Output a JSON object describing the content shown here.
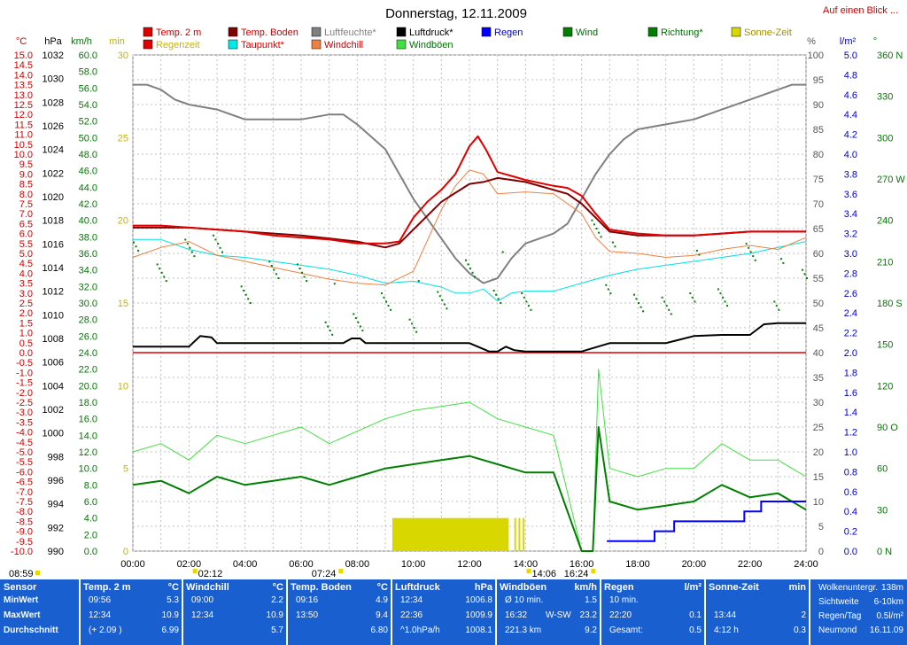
{
  "header": {
    "title": "Donnerstag, 12.11.2009",
    "quick_link": "Auf einen Blick ..."
  },
  "axes": {
    "temp": {
      "unit": "°C",
      "min": -10,
      "max": 15,
      "step": 0.5,
      "color": "#d00000"
    },
    "pressure": {
      "unit": "hPa",
      "min": 990,
      "max": 1032,
      "step": 2,
      "color": "#000000"
    },
    "wind_kmh": {
      "unit": "km/h",
      "min": 0,
      "max": 60,
      "step": 2,
      "color": "#007a00"
    },
    "minutes": {
      "unit": "min",
      "min": 0,
      "max": 30,
      "ticks": [
        0,
        5,
        10,
        15,
        20,
        25,
        30
      ],
      "color": "#c8b400"
    },
    "humidity": {
      "unit": "%",
      "min": 0,
      "max": 100,
      "step": 5,
      "color": "#555555"
    },
    "rain": {
      "unit": "l/m²",
      "min": 0,
      "max": 5,
      "step": 0.2,
      "color": "#0000cc"
    },
    "direction": {
      "unit": "°",
      "min": 0,
      "max": 360,
      "step": 30,
      "color": "#007a00",
      "labels": {
        "90": "90 O",
        "180": "180 S",
        "270": "270 W",
        "360": "360 N",
        "0": "0 N"
      }
    },
    "time": {
      "labels": [
        "00:00",
        "02:00",
        "04:00",
        "06:00",
        "08:00",
        "10:00",
        "12:00",
        "14:00",
        "16:00",
        "18:00",
        "20:00",
        "22:00",
        "24:00"
      ]
    }
  },
  "legend": [
    {
      "label": "Temp. 2 m",
      "color": "#e00000",
      "text_color": "#d00000"
    },
    {
      "label": "Temp. Boden",
      "color": "#800000",
      "text_color": "#d00000"
    },
    {
      "label": "Luftfeuchte*",
      "color": "#808080",
      "text_color": "#808080"
    },
    {
      "label": "Luftdruck*",
      "color": "#000000",
      "text_color": "#000000"
    },
    {
      "label": "Regen",
      "color": "#0000ff",
      "text_color": "#0000cc"
    },
    {
      "label": "Wind",
      "color": "#008000",
      "text_color": "#007000"
    },
    {
      "label": "Richtung*",
      "color": "#008000",
      "text_color": "#007000"
    },
    {
      "label": "Sonne-Zeit",
      "color": "#d8d800",
      "text_color": "#a09000"
    },
    {
      "label": "Regenzeit",
      "color": "#e00000",
      "text_color": "#c8b400"
    },
    {
      "label": "Taupunkt*",
      "color": "#00e8e8",
      "text_color": "#d00000"
    },
    {
      "label": "Windchill",
      "color": "#f08040",
      "text_color": "#d00000"
    },
    {
      "label": "Windböen",
      "color": "#40e040",
      "text_color": "#007000"
    }
  ],
  "markers": {
    "sunrise": "07:24",
    "sunset": "16:24",
    "moonrise_pre": "08:59",
    "moon_a": "02:12",
    "moon_b": "14:06"
  },
  "chart_data": {
    "type": "line",
    "title": "Donnerstag, 12.11.2009",
    "x_range": [
      "00:00",
      "24:00"
    ],
    "series": [
      {
        "name": "Temp. 2 m",
        "unit": "°C",
        "x_hours": [
          0,
          1,
          2,
          3,
          4,
          5,
          6,
          7,
          8,
          9,
          9.5,
          10,
          10.5,
          11,
          11.5,
          12,
          12.3,
          12.6,
          13,
          13.5,
          14,
          15,
          15.5,
          16,
          16.5,
          17,
          18,
          19,
          20,
          21,
          22,
          23,
          24
        ],
        "values": [
          6.4,
          6.4,
          6.3,
          6.2,
          6.1,
          5.9,
          5.8,
          5.7,
          5.5,
          5.5,
          5.6,
          6.8,
          7.6,
          8.2,
          9.0,
          10.4,
          10.9,
          10.2,
          9.1,
          8.9,
          8.7,
          8.4,
          8.3,
          7.9,
          7.0,
          6.2,
          6.0,
          5.9,
          5.9,
          6.0,
          6.1,
          6.1,
          6.1
        ]
      },
      {
        "name": "Temp. Boden",
        "unit": "°C",
        "x_hours": [
          0,
          2,
          4,
          6,
          8,
          9,
          9.5,
          10,
          11,
          12,
          12.5,
          13,
          14,
          15,
          15.5,
          16,
          16.5,
          17,
          18,
          19,
          20,
          21,
          22,
          23,
          24
        ],
        "values": [
          6.3,
          6.3,
          6.1,
          5.9,
          5.6,
          5.3,
          5.5,
          6.2,
          7.6,
          8.5,
          8.6,
          8.8,
          8.6,
          8.2,
          8.0,
          7.5,
          6.8,
          6.1,
          5.9,
          5.9,
          5.9,
          6.0,
          6.1,
          6.1,
          6.1
        ]
      },
      {
        "name": "Luftfeuchte*",
        "unit": "%",
        "x_hours": [
          0,
          0.5,
          1,
          1.5,
          2,
          3,
          4,
          5,
          6,
          7,
          7.5,
          8,
          9,
          9.5,
          10,
          10.5,
          11,
          11.5,
          12,
          12.5,
          13,
          13.5,
          14,
          14.5,
          15,
          15.5,
          16,
          16.5,
          17,
          17.5,
          18,
          19,
          20,
          21,
          22,
          23,
          23.5,
          24
        ],
        "values": [
          94,
          94,
          93,
          91,
          90,
          89,
          87,
          87,
          87,
          88,
          88,
          86,
          81,
          76,
          71,
          67,
          63,
          59,
          56,
          54,
          55,
          59,
          62,
          63,
          64,
          66,
          71,
          76,
          80,
          83,
          85,
          86,
          87,
          89,
          91,
          93,
          94,
          94
        ]
      },
      {
        "name": "Luftdruck*",
        "unit": "hPa",
        "x_hours": [
          0,
          2,
          2.4,
          2.8,
          3,
          4,
          6,
          7.5,
          7.8,
          8.1,
          8.3,
          10,
          12,
          12.4,
          12.7,
          13,
          13.3,
          13.6,
          14,
          15,
          16,
          17,
          18,
          19,
          20,
          21,
          22,
          22.5,
          23,
          24
        ],
        "values": [
          1007.3,
          1007.3,
          1008.2,
          1008.1,
          1007.6,
          1007.6,
          1007.6,
          1007.6,
          1008.0,
          1008.0,
          1007.6,
          1007.6,
          1007.6,
          1007.2,
          1006.9,
          1006.9,
          1007.3,
          1007.0,
          1006.9,
          1006.9,
          1006.9,
          1007.6,
          1007.6,
          1007.6,
          1008.2,
          1008.3,
          1008.3,
          1009.2,
          1009.3,
          1009.3
        ]
      },
      {
        "name": "Taupunkt*",
        "unit": "°C",
        "x_hours": [
          0,
          1,
          2,
          3,
          4,
          5,
          6,
          7,
          8,
          9,
          10,
          11,
          11.5,
          12,
          12.5,
          13,
          13.5,
          14,
          15,
          16,
          17,
          18,
          19,
          20,
          21,
          22,
          23,
          24
        ],
        "values": [
          5.7,
          5.7,
          5.2,
          4.9,
          4.8,
          4.6,
          4.4,
          4.2,
          3.9,
          3.5,
          3.6,
          3.3,
          3.0,
          3.0,
          3.2,
          2.6,
          3.0,
          3.1,
          3.1,
          3.5,
          3.9,
          4.2,
          4.4,
          4.6,
          4.8,
          5.0,
          5.3,
          5.6
        ]
      },
      {
        "name": "Windchill",
        "unit": "°C",
        "x_hours": [
          0,
          1,
          2,
          3,
          4,
          5,
          6,
          7,
          8,
          9,
          10,
          11,
          11.5,
          12,
          12.5,
          13,
          14,
          15,
          16,
          16.5,
          17,
          18,
          19,
          20,
          21,
          22,
          23,
          24
        ],
        "values": [
          4.8,
          5.3,
          5.6,
          4.9,
          4.6,
          4.3,
          4.0,
          3.7,
          3.5,
          3.4,
          4.1,
          7.2,
          8.4,
          9.2,
          9.0,
          8.0,
          8.1,
          8.0,
          7.0,
          5.8,
          5.1,
          5.0,
          4.8,
          4.9,
          5.2,
          5.4,
          5.2,
          5.8
        ]
      },
      {
        "name": "Wind",
        "unit": "km/h",
        "x_hours": [
          0,
          1,
          2,
          3,
          4,
          5,
          6,
          7,
          8,
          9,
          10,
          11,
          12,
          13,
          14,
          15,
          16,
          16.4,
          16.6,
          17,
          18,
          19,
          20,
          21,
          22,
          23,
          24
        ],
        "values": [
          8.0,
          8.5,
          7.0,
          9.0,
          8.0,
          8.5,
          9.0,
          8.0,
          9.0,
          10.0,
          10.5,
          11.0,
          11.5,
          10.5,
          9.5,
          9.5,
          0.0,
          0.0,
          15.0,
          6.0,
          5.0,
          5.5,
          6.0,
          8.0,
          6.5,
          7.0,
          5.0
        ]
      },
      {
        "name": "Windböen",
        "unit": "km/h",
        "x_hours": [
          0,
          1,
          2,
          3,
          4,
          5,
          6,
          7,
          8,
          9,
          10,
          11,
          12,
          13,
          14,
          15,
          16,
          16.4,
          16.6,
          17,
          18,
          19,
          20,
          21,
          22,
          23,
          24
        ],
        "values": [
          12.0,
          13.0,
          11.0,
          14.0,
          13.0,
          14.0,
          15.0,
          13.0,
          14.5,
          16.0,
          17.0,
          17.5,
          18.0,
          16.0,
          15.0,
          14.0,
          0.0,
          0.0,
          22.0,
          10.0,
          9.0,
          10.0,
          10.0,
          13.0,
          11.0,
          11.0,
          9.0
        ]
      },
      {
        "name": "Richtung*",
        "unit": "°",
        "x_hours": [
          0,
          1,
          2,
          3,
          4,
          5,
          6,
          7,
          8,
          9,
          10,
          11,
          12,
          13,
          14,
          16.5,
          17,
          18,
          19,
          20,
          21,
          22,
          23,
          24
        ],
        "values": [
          210,
          215,
          220,
          210,
          200,
          205,
          190,
          175,
          168,
          170,
          178,
          185,
          195,
          200,
          185,
          225,
          205,
          185,
          170,
          200,
          190,
          210,
          195,
          205
        ]
      },
      {
        "name": "Regen",
        "unit": "l/m²",
        "x_hours": [
          16.9,
          17.7,
          18.6,
          19.3,
          20.0,
          21.2,
          21.8,
          22.4,
          24.0
        ],
        "values": [
          0.1,
          0.1,
          0.2,
          0.3,
          0.3,
          0.3,
          0.4,
          0.5,
          0.5
        ]
      },
      {
        "name": "Sonne-Zeit",
        "unit": "min",
        "x_hours": [
          9.25,
          13.4
        ],
        "values": [
          2,
          2
        ]
      }
    ]
  },
  "stats": [
    {
      "title": "Sensor",
      "unit": "",
      "rows": [
        [
          "MinWert",
          "",
          ""
        ],
        [
          "MaxWert",
          "",
          ""
        ],
        [
          "Durchschnitt",
          "",
          ""
        ]
      ]
    },
    {
      "title": "Temp. 2 m",
      "unit": "°C",
      "rows": [
        [
          "09:56",
          "",
          "5.3"
        ],
        [
          "12:34",
          "",
          "10.9"
        ],
        [
          "(+ 2.09 )",
          "",
          "6.99"
        ]
      ]
    },
    {
      "title": "Windchill",
      "unit": "°C",
      "rows": [
        [
          "09:00",
          "",
          "2.2"
        ],
        [
          "12:34",
          "",
          "10.9"
        ],
        [
          "",
          "",
          "5.7"
        ]
      ]
    },
    {
      "title": "Temp. Boden",
      "unit": "°C",
      "rows": [
        [
          "09:16",
          "",
          "4.9"
        ],
        [
          "13:50",
          "",
          "9.4"
        ],
        [
          "",
          "",
          "6.80"
        ]
      ]
    },
    {
      "title": "Luftdruck",
      "unit": "hPa",
      "rows": [
        [
          "12:34",
          "",
          "1006.8"
        ],
        [
          "22:36",
          "",
          "1009.9"
        ],
        [
          "^1.0hPa/h",
          "",
          "1008.1"
        ]
      ]
    },
    {
      "title": "Windböen",
      "unit": "km/h",
      "rows": [
        [
          "Ø 10 min.",
          "",
          "1.5"
        ],
        [
          "16:32",
          "W-SW",
          "23.2"
        ],
        [
          "221.3 km",
          "",
          "9.2"
        ]
      ]
    },
    {
      "title": "Regen",
      "unit": "l/m²",
      "rows": [
        [
          "10 min.",
          "",
          ""
        ],
        [
          "22:20",
          "",
          "0.1"
        ],
        [
          "Gesamt:",
          "",
          "0.5"
        ]
      ]
    },
    {
      "title": "Sonne-Zeit",
      "unit": "min",
      "rows": [
        [
          "",
          "",
          ""
        ],
        [
          "13:44",
          "",
          "2"
        ],
        [
          "4:12 h",
          "",
          "0.3"
        ]
      ]
    },
    {
      "title": "",
      "unit": "",
      "rows": [
        [
          "Wolkenuntergr.",
          "",
          "138m"
        ],
        [
          "Sichtweite",
          "",
          "6-10km"
        ],
        [
          "Regen/Tag",
          "",
          "0.5l/m²"
        ],
        [
          "Neumond",
          "",
          "16.11.09"
        ]
      ]
    }
  ]
}
